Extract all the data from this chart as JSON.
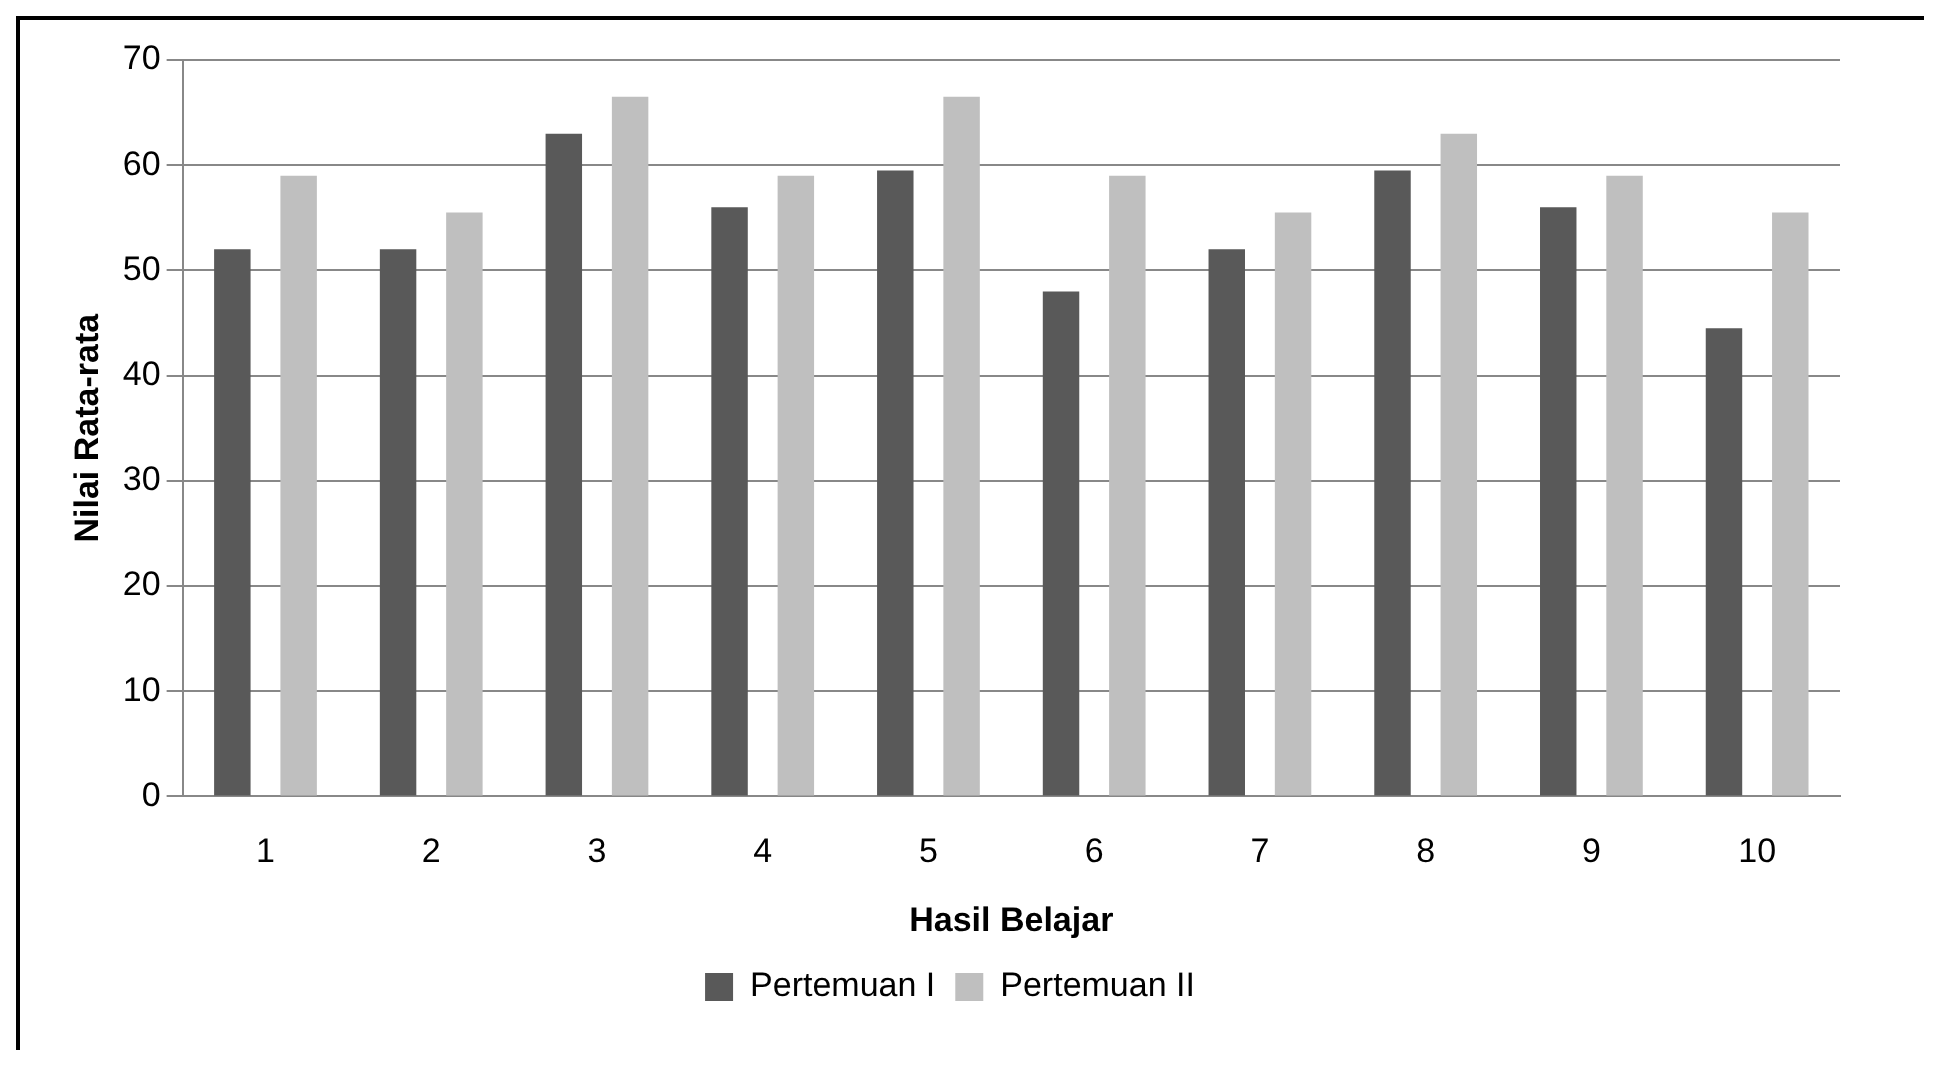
{
  "chart_data": {
    "type": "bar",
    "xlabel": "Hasil Belajar",
    "ylabel": "Nilai Rata-rata",
    "categories": [
      "1",
      "2",
      "3",
      "4",
      "5",
      "6",
      "7",
      "8",
      "9",
      "10"
    ],
    "series": [
      {
        "name": "Pertemuan I",
        "color": "#595959",
        "values": [
          52,
          52,
          63,
          56,
          59.5,
          48,
          52,
          59.5,
          56,
          44.5
        ]
      },
      {
        "name": "Pertemuan II",
        "color": "#bfbfbf",
        "values": [
          59,
          55.5,
          66.5,
          59,
          66.5,
          59,
          55.5,
          63,
          59,
          55.5
        ]
      }
    ],
    "ylim": [
      0,
      70
    ],
    "yticks": [
      0,
      10,
      20,
      30,
      40,
      50,
      60,
      70
    ],
    "grid": "y",
    "legend": "bottom"
  }
}
